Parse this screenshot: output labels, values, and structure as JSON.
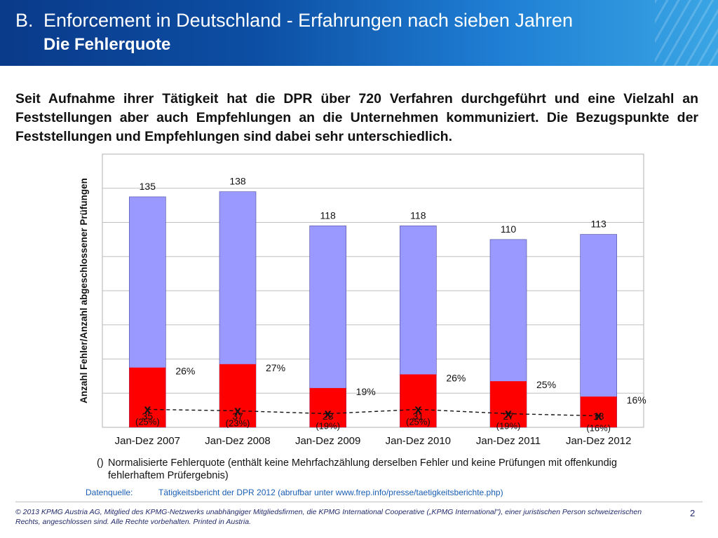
{
  "header": {
    "number": "B.",
    "title": "Enforcement in Deutschland - Erfahrungen nach sieben Jahren",
    "subtitle": "Die Fehlerquote"
  },
  "intro": "Seit Aufnahme ihrer Tätigkeit hat die DPR über 720 Verfahren durchgeführt und eine Vielzahl an Feststellungen aber auch Empfehlungen an die Unternehmen kommuniziert. Die Bezugspunkte der Feststellungen und Empfehlungen sind dabei sehr unterschiedlich.",
  "colors": {
    "total_bar": "#9999ff",
    "error_bar": "#ff0000",
    "header_dark": "#0a3a8a",
    "header_light": "#3aa5e4"
  },
  "chart_data": {
    "type": "bar",
    "title": "",
    "xlabel": "",
    "ylabel": "Anzahl Fehler/Anzahl abgeschlossener Prüfungen",
    "ylim": [
      0,
      160
    ],
    "grid": true,
    "categories": [
      "Jan-Dez 2007",
      "Jan-Dez 2008",
      "Jan-Dez 2009",
      "Jan-Dez 2010",
      "Jan-Dez 2011",
      "Jan-Dez 2012"
    ],
    "series": [
      {
        "name": "Anzahl abgeschlossener Prüfungen",
        "values": [
          135,
          138,
          118,
          118,
          110,
          113
        ]
      },
      {
        "name": "Anzahl Fehler",
        "values": [
          35,
          37,
          23,
          31,
          27,
          18
        ]
      }
    ],
    "error_rate_labels": [
      "26%",
      "27%",
      "19%",
      "26%",
      "25%",
      "16%"
    ],
    "normalized_rate_labels": [
      "(25%)",
      "(23%)",
      "(19%)",
      "(25%)",
      "(19%)",
      "(16%)"
    ],
    "normalized_rate_values": [
      25,
      23,
      19,
      25,
      19,
      16
    ],
    "marker": "x",
    "note_paren": "()",
    "note": "Normalisierte Fehlerquote (enthält keine Mehrfachzählung derselben Fehler und keine Prüfungen mit offenkundig",
    "note_line2": "fehlerhaftem Prüfergebnis)"
  },
  "source": {
    "label": "Datenquelle:",
    "text": "Tätigkeitsbericht der DPR 2012 (abrufbar unter www.frep.info/presse/taetigkeitsberichte.php)"
  },
  "footer": {
    "copyright": "© 2013 KPMG Austria AG, Mitglied des KPMG-Netzwerks unabhängiger Mitgliedsfirmen, die KPMG International Cooperative („KPMG International\"), einer juristischen Person schweizerischen Rechts, angeschlossen sind. Alle Rechte vorbehalten. Printed in Austria.",
    "page": "2"
  }
}
